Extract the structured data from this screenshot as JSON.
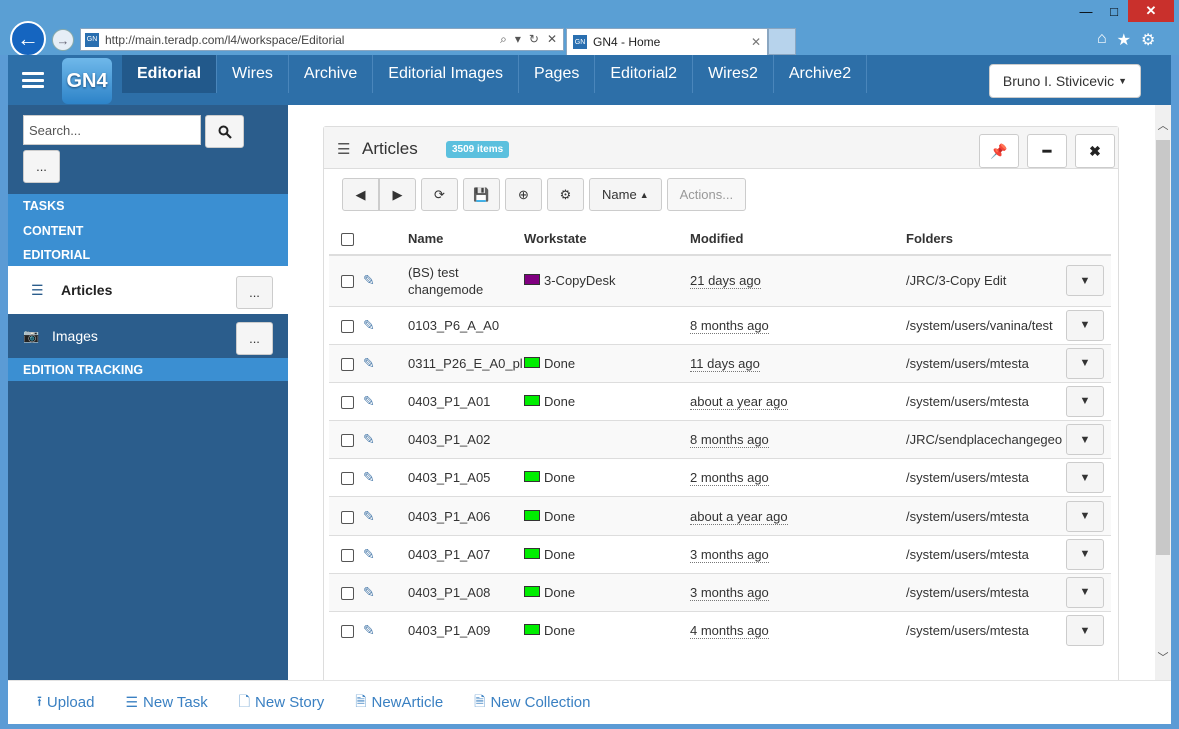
{
  "browser": {
    "url": "http://main.teradp.com/l4/workspace/Editorial",
    "tab_title": "GN4 - Home",
    "window_minimize": "—",
    "window_maximize": "□",
    "window_close": "✕"
  },
  "app": {
    "logo_text": "GN4",
    "nav_tabs": [
      "Editorial",
      "Wires",
      "Archive",
      "Editorial Images",
      "Pages",
      "Editorial2",
      "Wires2",
      "Archive2"
    ],
    "active_tab": "Editorial",
    "user_menu": "Bruno I. Stivicevic"
  },
  "sidebar": {
    "search_placeholder": "Search...",
    "more_label": "...",
    "sections": [
      "TASKS",
      "CONTENT",
      "EDITORIAL"
    ],
    "articles_label": "Articles",
    "images_label": "Images",
    "edition_tracking": "EDITION TRACKING"
  },
  "panel": {
    "title": "Articles",
    "count_badge": "3509 items",
    "sort_label": "Name",
    "actions_label": "Actions...",
    "columns": [
      "Name",
      "Workstate",
      "Modified",
      "Folders"
    ],
    "rows": [
      {
        "name": "(BS) test changemode",
        "workstate": "3-CopyDesk",
        "ws_color": "#800080",
        "modified": "21 days ago",
        "folder": "/JRC/3-Copy Edit"
      },
      {
        "name": "0103_P6_A_A0",
        "workstate": "",
        "ws_color": "",
        "modified": "8 months ago",
        "folder": "/system/users/vanina/test"
      },
      {
        "name": "0311_P26_E_A0_pl",
        "workstate": "Done",
        "ws_color": "#00ee00",
        "modified": "11 days ago",
        "folder": "/system/users/mtesta"
      },
      {
        "name": "0403_P1_A01",
        "workstate": "Done",
        "ws_color": "#00ee00",
        "modified": "about a year ago",
        "folder": "/system/users/mtesta"
      },
      {
        "name": "0403_P1_A02",
        "workstate": "",
        "ws_color": "",
        "modified": "8 months ago",
        "folder": "/JRC/sendplacechangegeo"
      },
      {
        "name": "0403_P1_A05",
        "workstate": "Done",
        "ws_color": "#00ee00",
        "modified": "2 months ago",
        "folder": "/system/users/mtesta"
      },
      {
        "name": "0403_P1_A06",
        "workstate": "Done",
        "ws_color": "#00ee00",
        "modified": "about a year ago",
        "folder": "/system/users/mtesta"
      },
      {
        "name": "0403_P1_A07",
        "workstate": "Done",
        "ws_color": "#00ee00",
        "modified": "3 months ago",
        "folder": "/system/users/mtesta"
      },
      {
        "name": "0403_P1_A08",
        "workstate": "Done",
        "ws_color": "#00ee00",
        "modified": "3 months ago",
        "folder": "/system/users/mtesta"
      },
      {
        "name": "0403_P1_A09",
        "workstate": "Done",
        "ws_color": "#00ee00",
        "modified": "4 months ago",
        "folder": "/system/users/mtesta"
      }
    ]
  },
  "footer": {
    "upload": "Upload",
    "new_task": "New Task",
    "new_story": "New Story",
    "new_article": "NewArticle",
    "new_collection": "New Collection"
  },
  "colors": {
    "app_header": "#2d6fa8",
    "sidebar": "#2b5d8c",
    "section_band": "#3b8fd2",
    "badge": "#5bc0de",
    "link": "#3a80c2"
  }
}
